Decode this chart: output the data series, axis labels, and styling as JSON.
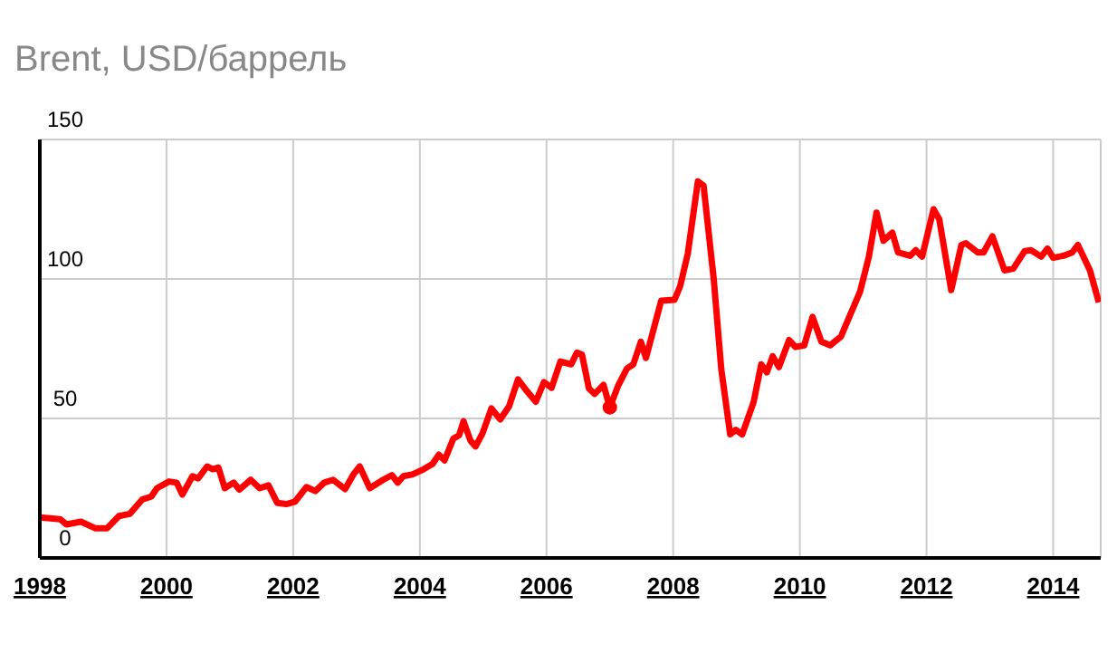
{
  "chart_data": {
    "type": "line",
    "title": "Brent, USD/баррель",
    "x": [
      1998.0,
      1998.32,
      1998.42,
      1998.65,
      1998.88,
      1999.06,
      1999.25,
      1999.42,
      1999.62,
      1999.76,
      1999.85,
      2000.04,
      2000.16,
      2000.25,
      2000.41,
      2000.5,
      2000.64,
      2000.73,
      2000.82,
      2000.92,
      2001.06,
      2001.15,
      2001.33,
      2001.47,
      2001.61,
      2001.75,
      2001.89,
      2002.03,
      2002.21,
      2002.35,
      2002.49,
      2002.63,
      2002.82,
      2002.95,
      2003.05,
      2003.21,
      2003.42,
      2003.56,
      2003.65,
      2003.74,
      2003.88,
      2004.06,
      2004.2,
      2004.3,
      2004.39,
      2004.53,
      2004.62,
      2004.69,
      2004.8,
      2004.88,
      2004.99,
      2005.13,
      2005.27,
      2005.41,
      2005.55,
      2005.69,
      2005.83,
      2005.96,
      2006.08,
      2006.22,
      2006.39,
      2006.48,
      2006.56,
      2006.67,
      2006.76,
      2006.9,
      2007.0,
      2007.13,
      2007.27,
      2007.37,
      2007.49,
      2007.57,
      2007.69,
      2007.81,
      2008.02,
      2008.11,
      2008.23,
      2008.39,
      2008.48,
      2008.64,
      2008.76,
      2008.9,
      2008.99,
      2009.09,
      2009.27,
      2009.39,
      2009.48,
      2009.57,
      2009.67,
      2009.83,
      2009.93,
      2010.07,
      2010.2,
      2010.34,
      2010.48,
      2010.65,
      2010.77,
      2010.95,
      2011.09,
      2011.21,
      2011.32,
      2011.46,
      2011.55,
      2011.74,
      2011.83,
      2011.93,
      2012.11,
      2012.2,
      2012.39,
      2012.55,
      2012.62,
      2012.81,
      2012.9,
      2013.04,
      2013.23,
      2013.37,
      2013.55,
      2013.65,
      2013.81,
      2013.91,
      2014.0,
      2014.16,
      2014.3,
      2014.39,
      2014.58,
      2014.72
    ],
    "series": [
      {
        "color": "#ff0000",
        "values": [
          14.5,
          13.9,
          12,
          13,
          10.6,
          10.6,
          15,
          15.8,
          21,
          22,
          25,
          27.4,
          27,
          22.7,
          29.3,
          28.5,
          32.8,
          31.8,
          32.4,
          25,
          27,
          24.5,
          28,
          25,
          26,
          19.7,
          19.3,
          20.2,
          25.4,
          24,
          27,
          28,
          24.7,
          29.9,
          32.8,
          25,
          28,
          29.7,
          27,
          29.3,
          29.9,
          31.8,
          33.7,
          37,
          35,
          42.8,
          44,
          49,
          42,
          40,
          44.7,
          53.6,
          49.7,
          54.4,
          64,
          59.8,
          56,
          63,
          61,
          70.4,
          69.4,
          73.6,
          72.9,
          60.7,
          58.8,
          62,
          54,
          61.7,
          67.9,
          69.4,
          77.5,
          71.7,
          81.9,
          92.2,
          92.5,
          97.4,
          109,
          135,
          133.4,
          100,
          67.5,
          44.3,
          45.9,
          44.3,
          55.9,
          69.4,
          66.5,
          72.3,
          68.4,
          78.1,
          75.6,
          76.2,
          86.4,
          77.5,
          76.2,
          79.4,
          85.8,
          95.4,
          108,
          123.8,
          113.7,
          116.6,
          109.5,
          108.3,
          110.3,
          108,
          125,
          121.5,
          96,
          112.2,
          112.8,
          109.5,
          109.5,
          115.3,
          103.1,
          103.7,
          110,
          110.3,
          108,
          110.9,
          107.6,
          108.3,
          109.5,
          112.2,
          103.1,
          91.6
        ]
      },
      {
        "type": "scatter",
        "color": "#ff0000",
        "x": [
          2007.0
        ],
        "values": [
          54
        ]
      }
    ],
    "xlim": [
      1998,
      2014.75
    ],
    "xticks": [
      1998,
      2000,
      2002,
      2004,
      2006,
      2008,
      2010,
      2012,
      2014
    ],
    "ylim": [
      0,
      150
    ],
    "yticks": [
      0,
      50,
      100,
      150
    ],
    "grid": true
  }
}
